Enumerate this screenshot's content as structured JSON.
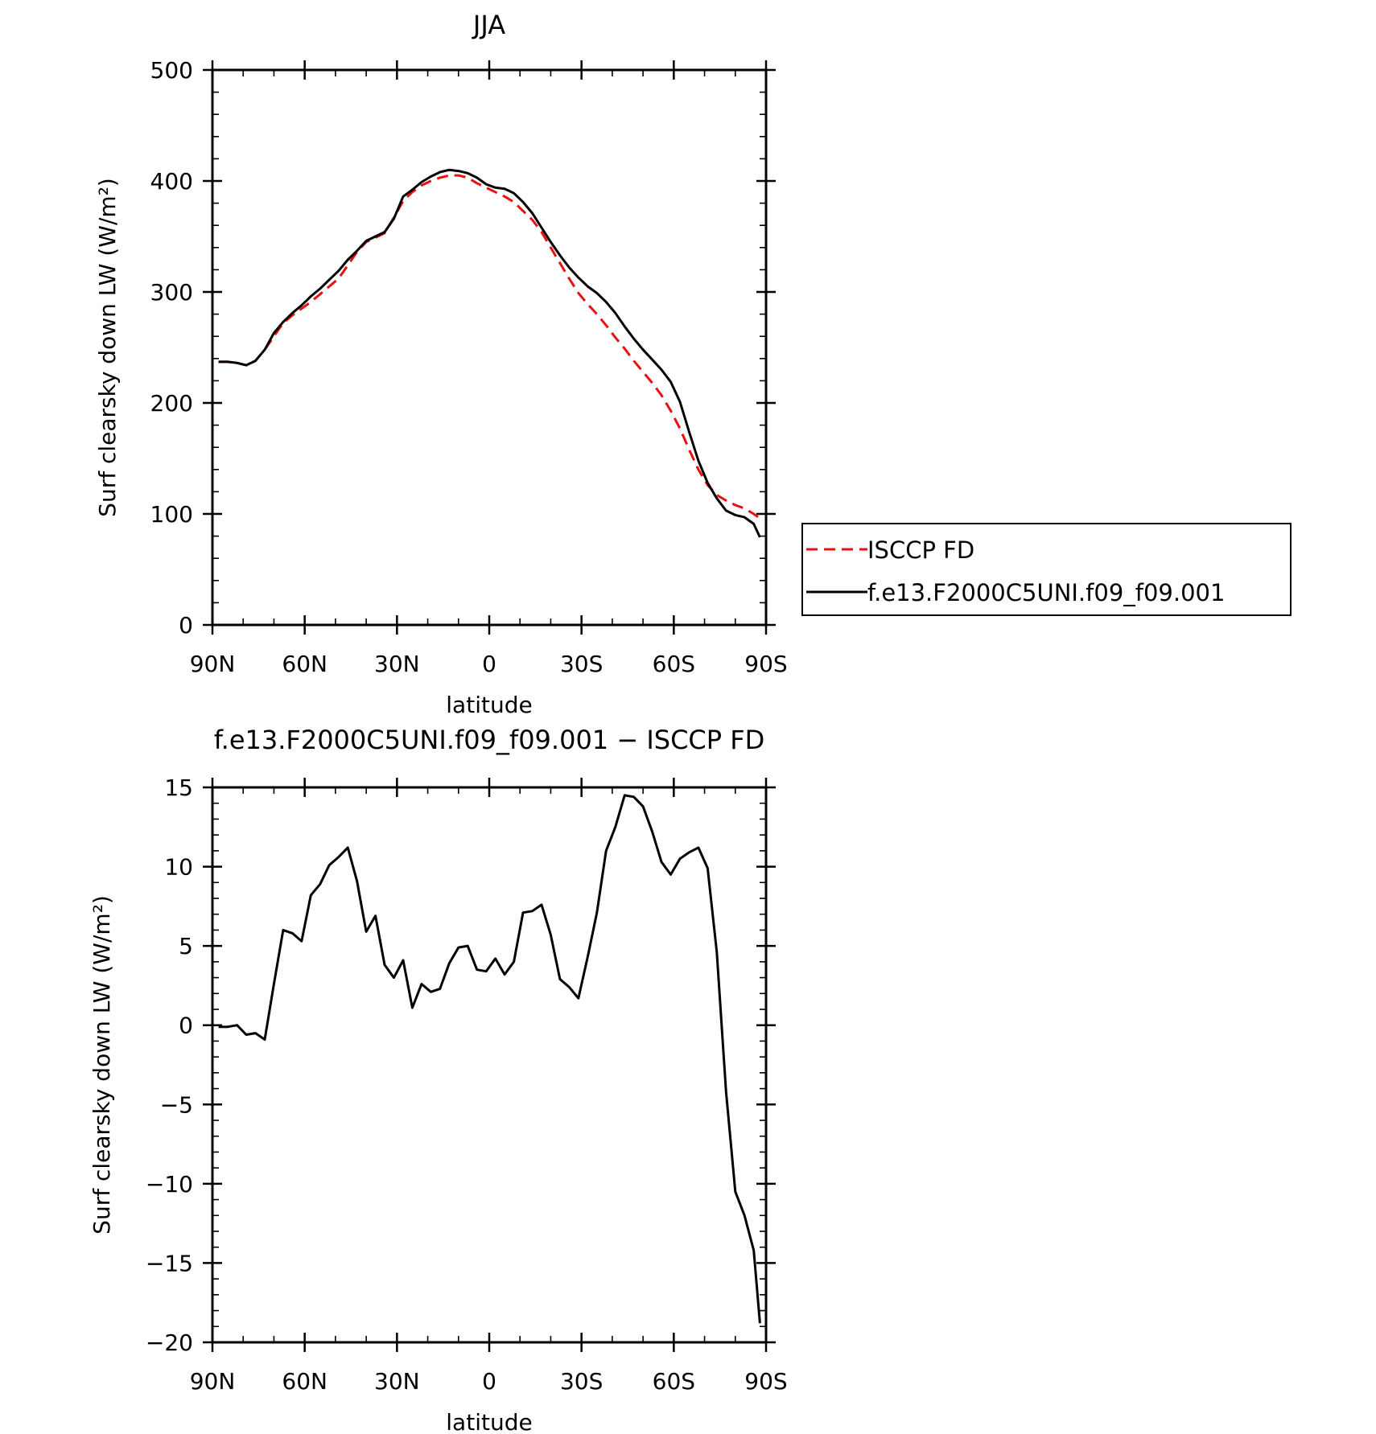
{
  "chart_data": [
    {
      "type": "line",
      "title": "JJA",
      "xlabel": "latitude",
      "ylabel": "Surf clearsky down LW (W/m²)",
      "ylim": [
        0,
        500
      ],
      "xlim": [
        90,
        -90
      ],
      "y_ticks": [
        "0",
        "100",
        "200",
        "300",
        "400",
        "500"
      ],
      "x_ticks": [
        "90N",
        "60N",
        "30N",
        "0",
        "30S",
        "60S",
        "90S"
      ],
      "legend_placement": "right",
      "x": [
        88,
        85,
        82,
        79,
        76,
        73,
        70,
        67,
        64,
        61,
        58,
        55,
        52,
        49,
        46,
        43,
        40,
        37,
        34,
        31,
        28,
        25,
        22,
        19,
        16,
        13,
        10,
        7,
        4,
        1,
        -2,
        -5,
        -8,
        -11,
        -14,
        -17,
        -20,
        -23,
        -26,
        -29,
        -32,
        -35,
        -38,
        -41,
        -44,
        -47,
        -50,
        -53,
        -56,
        -59,
        -62,
        -65,
        -68,
        -71,
        -74,
        -77,
        -80,
        -83,
        -86,
        -88
      ],
      "series": [
        {
          "name": "ISCCP FD",
          "color": "#e8110f",
          "dash": "dashed",
          "values": [
            237,
            237,
            236,
            234,
            238,
            248,
            260,
            272,
            279,
            285,
            291,
            298,
            305,
            312,
            324,
            336,
            345,
            349,
            353,
            367,
            382,
            390,
            396,
            400,
            403,
            405,
            405,
            403,
            398,
            394,
            390,
            386,
            381,
            373,
            365,
            354,
            340,
            326,
            312,
            299,
            289,
            280,
            270,
            259,
            249,
            238,
            228,
            218,
            207,
            193,
            177,
            158,
            140,
            126,
            117,
            112,
            108,
            105,
            100,
            96
          ]
        },
        {
          "name": "f.e13.F2000C5UNI.f09_f09.001",
          "color": "#000000",
          "dash": "solid",
          "values": [
            237,
            237,
            236,
            234,
            238,
            248,
            263,
            273,
            281,
            288,
            296,
            303,
            311,
            319,
            329,
            337,
            346,
            350,
            354,
            366,
            386,
            392,
            399,
            404,
            408,
            410,
            409,
            407,
            403,
            397,
            394,
            393,
            389,
            381,
            371,
            358,
            345,
            333,
            322,
            313,
            305,
            299,
            291,
            281,
            269,
            258,
            248,
            239,
            230,
            219,
            201,
            174,
            148,
            128,
            114,
            103,
            99,
            97,
            91,
            79
          ]
        }
      ]
    },
    {
      "type": "line",
      "title": "f.e13.F2000C5UNI.f09_f09.001 − ISCCP FD",
      "xlabel": "latitude",
      "ylabel": "Surf clearsky down LW (W/m²)",
      "ylim": [
        -20,
        15
      ],
      "xlim": [
        90,
        -90
      ],
      "y_ticks": [
        "−20",
        "−15",
        "−10",
        "−5",
        "0",
        "5",
        "10",
        "15"
      ],
      "x_ticks": [
        "90N",
        "60N",
        "30N",
        "0",
        "30S",
        "60S",
        "90S"
      ],
      "x": [
        88,
        85,
        82,
        79,
        76,
        73,
        70,
        67,
        64,
        61,
        58,
        55,
        52,
        49,
        46,
        43,
        40,
        37,
        34,
        31,
        28,
        25,
        22,
        19,
        16,
        13,
        10,
        7,
        4,
        1,
        -2,
        -5,
        -8,
        -11,
        -14,
        -17,
        -20,
        -23,
        -26,
        -29,
        -32,
        -35,
        -38,
        -41,
        -44,
        -47,
        -50,
        -53,
        -56,
        -59,
        -62,
        -65,
        -68,
        -71,
        -74,
        -77,
        -80,
        -83,
        -86,
        -88
      ],
      "series": [
        {
          "color": "#000000",
          "dash": "solid",
          "values": [
            -0.1,
            -0.1,
            0.0,
            -0.6,
            -0.5,
            -0.9,
            2.6,
            6.0,
            5.8,
            5.3,
            8.2,
            8.9,
            10.1,
            10.6,
            11.2,
            9.1,
            5.9,
            6.9,
            3.8,
            3.0,
            4.1,
            1.1,
            2.6,
            2.1,
            2.3,
            3.9,
            4.9,
            5.0,
            3.5,
            3.4,
            4.2,
            3.2,
            4.0,
            7.1,
            7.2,
            7.6,
            5.7,
            2.9,
            2.4,
            1.7,
            4.3,
            7.1,
            11.0,
            12.5,
            14.5,
            14.4,
            13.8,
            12.2,
            10.3,
            9.5,
            10.5,
            10.9,
            11.2,
            9.9,
            4.6,
            -4.2,
            -10.5,
            -12.0,
            -14.2,
            -18.8
          ]
        }
      ]
    }
  ]
}
